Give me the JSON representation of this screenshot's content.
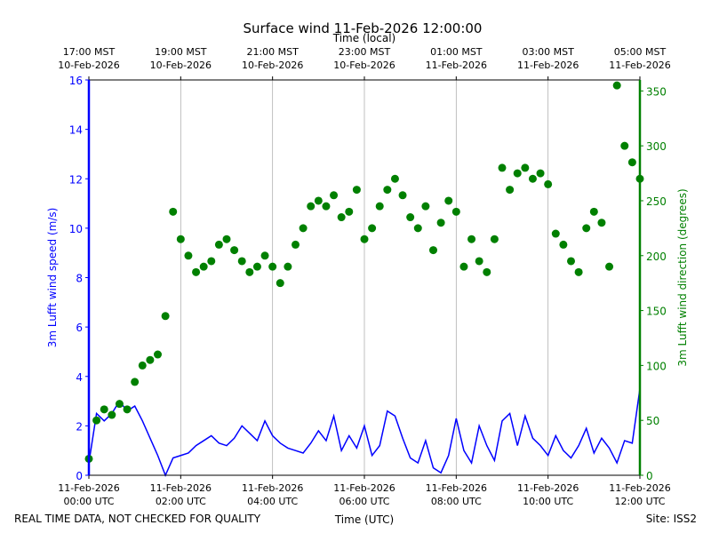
{
  "chart_data": {
    "type": "line",
    "title": "Surface wind 11-Feb-2026 12:00:00",
    "x2label": "Time (local)",
    "xlabel": "Time (UTC)",
    "footer_left": "REAL TIME DATA, NOT CHECKED FOR QUALITY",
    "footer_right": "Site: ISS2",
    "x": [
      "00:00",
      "00:10",
      "00:20",
      "00:30",
      "00:40",
      "00:50",
      "01:00",
      "01:10",
      "01:20",
      "01:30",
      "01:40",
      "01:50",
      "02:00",
      "02:10",
      "02:20",
      "02:30",
      "02:40",
      "02:50",
      "03:00",
      "03:10",
      "03:20",
      "03:30",
      "03:40",
      "03:50",
      "04:00",
      "04:10",
      "04:20",
      "04:30",
      "04:40",
      "04:50",
      "05:00",
      "05:10",
      "05:20",
      "05:30",
      "05:40",
      "05:50",
      "06:00",
      "06:10",
      "06:20",
      "06:30",
      "06:40",
      "06:50",
      "07:00",
      "07:10",
      "07:20",
      "07:30",
      "07:40",
      "07:50",
      "08:00",
      "08:10",
      "08:20",
      "08:30",
      "08:40",
      "08:50",
      "09:00",
      "09:10",
      "09:20",
      "09:30",
      "09:40",
      "09:50",
      "10:00",
      "10:10",
      "10:20",
      "10:30",
      "10:40",
      "10:50",
      "11:00",
      "11:10",
      "11:20",
      "11:30",
      "11:40",
      "11:50",
      "12:00"
    ],
    "xlim": [
      "00:00",
      "12:00"
    ],
    "xticks": [
      {
        "value": "00:00",
        "label": [
          "11-Feb-2026",
          "00:00 UTC"
        ]
      },
      {
        "value": "02:00",
        "label": [
          "11-Feb-2026",
          "02:00 UTC"
        ]
      },
      {
        "value": "04:00",
        "label": [
          "11-Feb-2026",
          "04:00 UTC"
        ]
      },
      {
        "value": "06:00",
        "label": [
          "11-Feb-2026",
          "06:00 UTC"
        ]
      },
      {
        "value": "08:00",
        "label": [
          "11-Feb-2026",
          "08:00 UTC"
        ]
      },
      {
        "value": "10:00",
        "label": [
          "11-Feb-2026",
          "10:00 UTC"
        ]
      },
      {
        "value": "12:00",
        "label": [
          "11-Feb-2026",
          "12:00 UTC"
        ]
      }
    ],
    "x2ticks": [
      {
        "value": "00:00",
        "label": [
          "17:00 MST",
          "10-Feb-2026"
        ]
      },
      {
        "value": "02:00",
        "label": [
          "19:00 MST",
          "10-Feb-2026"
        ]
      },
      {
        "value": "04:00",
        "label": [
          "21:00 MST",
          "10-Feb-2026"
        ]
      },
      {
        "value": "06:00",
        "label": [
          "23:00 MST",
          "10-Feb-2026"
        ]
      },
      {
        "value": "08:00",
        "label": [
          "01:00 MST",
          "11-Feb-2026"
        ]
      },
      {
        "value": "10:00",
        "label": [
          "03:00 MST",
          "11-Feb-2026"
        ]
      },
      {
        "value": "12:00",
        "label": [
          "05:00 MST",
          "11-Feb-2026"
        ]
      }
    ],
    "ylim": [
      0,
      16
    ],
    "yticks": [
      0,
      2,
      4,
      6,
      8,
      10,
      12,
      14,
      16
    ],
    "y2lim": [
      0,
      360
    ],
    "y2ticks": [
      0,
      50,
      100,
      150,
      200,
      250,
      300,
      350
    ],
    "grid": true,
    "series": [
      {
        "name": "3m Lufft wind speed (m/s)",
        "type": "line",
        "color": "#0000ff",
        "values": [
          0.5,
          2.5,
          2.2,
          2.5,
          3.0,
          2.6,
          2.8,
          2.2,
          1.5,
          0.8,
          0,
          0.7,
          0.8,
          0.9,
          1.2,
          1.4,
          1.6,
          1.3,
          1.2,
          1.5,
          2.0,
          1.7,
          1.4,
          2.2,
          1.6,
          1.3,
          1.1,
          1.0,
          0.9,
          1.3,
          1.8,
          1.4,
          2.4,
          1.0,
          1.6,
          1.1,
          2.0,
          0.8,
          1.2,
          2.6,
          2.4,
          1.5,
          0.7,
          0.5,
          1.4,
          0.3,
          0.1,
          0.8,
          2.3,
          1.0,
          0.5,
          2.0,
          1.2,
          0.6,
          2.2,
          2.5,
          1.2,
          2.4,
          1.5,
          1.2,
          0.8,
          1.6,
          1.0,
          0.7,
          1.2,
          1.9,
          0.9,
          1.5,
          1.1,
          0.5,
          1.4,
          1.3,
          3.5
        ]
      },
      {
        "name": "3m Lufft wind direction (degrees)",
        "type": "scatter",
        "color": "#008000",
        "axis": "y2",
        "values": [
          15,
          50,
          60,
          55,
          65,
          60,
          85,
          100,
          105,
          110,
          145,
          240,
          215,
          200,
          185,
          190,
          195,
          210,
          215,
          205,
          195,
          185,
          190,
          200,
          190,
          175,
          190,
          210,
          225,
          245,
          250,
          245,
          255,
          235,
          240,
          260,
          215,
          225,
          245,
          260,
          270,
          255,
          235,
          225,
          245,
          205,
          230,
          250,
          240,
          190,
          215,
          195,
          185,
          215,
          280,
          260,
          275,
          280,
          270,
          275,
          265,
          220,
          210,
          195,
          185,
          225,
          240,
          230,
          190,
          355,
          300,
          285,
          270
        ]
      }
    ]
  }
}
